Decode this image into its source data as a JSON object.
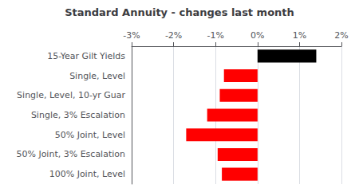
{
  "chart_data": {
    "type": "bar",
    "orientation": "horizontal",
    "title": "Standard Annuity - changes last month",
    "categories": [
      "100% Joint, Level",
      "50% Joint, 3% Escalation",
      "50% Joint, Level",
      "Single, 3% Escalation",
      "Single, Level, 10-yr Guar",
      "Single, Level",
      "15-Year Gilt Yields"
    ],
    "values": [
      -0.85,
      -0.95,
      -1.7,
      -1.2,
      -0.9,
      -0.8,
      1.4
    ],
    "colors": [
      "#ff0000",
      "#ff0000",
      "#ff0000",
      "#ff0000",
      "#ff0000",
      "#ff0000",
      "#000000"
    ],
    "xlim": [
      -3,
      2
    ],
    "xticks": [
      {
        "value": -3,
        "label": "-3%"
      },
      {
        "value": -2,
        "label": "-2%"
      },
      {
        "value": -1,
        "label": "-1%"
      },
      {
        "value": 0,
        "label": "0%"
      },
      {
        "value": 1,
        "label": "1%"
      },
      {
        "value": 2,
        "label": "2%"
      }
    ],
    "grid": true
  }
}
